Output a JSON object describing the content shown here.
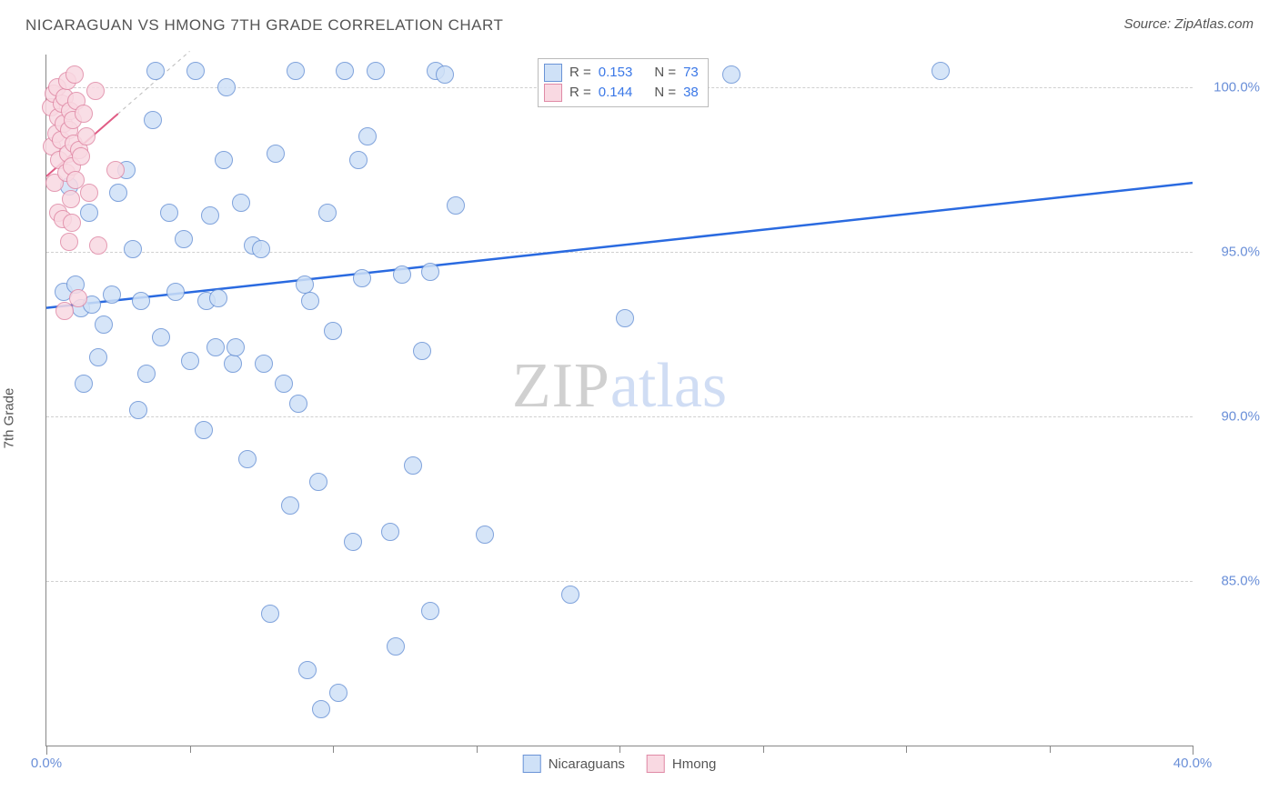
{
  "title": "NICARAGUAN VS HMONG 7TH GRADE CORRELATION CHART",
  "source": "Source: ZipAtlas.com",
  "y_axis_label": "7th Grade",
  "watermark": {
    "bold": "ZIP",
    "light": "atlas"
  },
  "chart": {
    "type": "scatter",
    "background_color": "#ffffff",
    "grid_color": "#d0d0d0",
    "axis_color": "#888888",
    "xlim": [
      0,
      40
    ],
    "ylim": [
      80,
      101
    ],
    "x_ticks_major": [
      0,
      40
    ],
    "x_ticks_minor": [
      5,
      10,
      15,
      20,
      25,
      30,
      35
    ],
    "x_tick_labels": [
      "0.0%",
      "40.0%"
    ],
    "y_ticks": [
      85,
      90,
      95,
      100
    ],
    "y_tick_labels": [
      "85.0%",
      "90.0%",
      "95.0%",
      "100.0%"
    ],
    "tick_label_color": "#6a8fd8",
    "tick_fontsize": 15,
    "marker_radius": 9,
    "marker_border_width": 1.5,
    "series": [
      {
        "name": "Nicaraguans",
        "fill_color": "#cfe1f7",
        "border_color": "#6a93d6",
        "trend_color": "#2a6ae0",
        "trend_width": 2.5,
        "trend_start": [
          0,
          93.3
        ],
        "trend_end": [
          40,
          97.1
        ],
        "points": [
          [
            0.6,
            93.8
          ],
          [
            0.8,
            97.0
          ],
          [
            1.0,
            94.0
          ],
          [
            1.2,
            93.3
          ],
          [
            1.3,
            91.0
          ],
          [
            1.5,
            96.2
          ],
          [
            1.6,
            93.4
          ],
          [
            1.8,
            91.8
          ],
          [
            2.0,
            92.8
          ],
          [
            2.3,
            93.7
          ],
          [
            2.5,
            96.8
          ],
          [
            2.8,
            97.5
          ],
          [
            3.0,
            95.1
          ],
          [
            3.2,
            90.2
          ],
          [
            3.3,
            93.5
          ],
          [
            3.5,
            91.3
          ],
          [
            3.7,
            99.0
          ],
          [
            3.8,
            100.5
          ],
          [
            4.0,
            92.4
          ],
          [
            4.3,
            96.2
          ],
          [
            4.5,
            93.8
          ],
          [
            4.8,
            95.4
          ],
          [
            5.0,
            91.7
          ],
          [
            5.2,
            100.5
          ],
          [
            5.5,
            89.6
          ],
          [
            5.6,
            93.5
          ],
          [
            5.7,
            96.1
          ],
          [
            5.9,
            92.1
          ],
          [
            6.0,
            93.6
          ],
          [
            6.2,
            97.8
          ],
          [
            6.3,
            100.0
          ],
          [
            6.5,
            91.6
          ],
          [
            6.6,
            92.1
          ],
          [
            6.8,
            96.5
          ],
          [
            7.0,
            88.7
          ],
          [
            7.2,
            95.2
          ],
          [
            7.5,
            95.1
          ],
          [
            7.6,
            91.6
          ],
          [
            7.8,
            84.0
          ],
          [
            8.0,
            98.0
          ],
          [
            8.3,
            91.0
          ],
          [
            8.5,
            87.3
          ],
          [
            8.7,
            100.5
          ],
          [
            8.8,
            90.4
          ],
          [
            9.0,
            94.0
          ],
          [
            9.2,
            93.5
          ],
          [
            9.5,
            88.0
          ],
          [
            9.6,
            81.1
          ],
          [
            9.8,
            96.2
          ],
          [
            9.1,
            82.3
          ],
          [
            10.0,
            92.6
          ],
          [
            10.2,
            81.6
          ],
          [
            10.4,
            100.5
          ],
          [
            10.7,
            86.2
          ],
          [
            10.9,
            97.8
          ],
          [
            11.0,
            94.2
          ],
          [
            11.2,
            98.5
          ],
          [
            11.5,
            100.5
          ],
          [
            12.0,
            86.5
          ],
          [
            12.2,
            83.0
          ],
          [
            12.4,
            94.3
          ],
          [
            12.8,
            88.5
          ],
          [
            13.1,
            92.0
          ],
          [
            13.4,
            84.1
          ],
          [
            13.4,
            94.4
          ],
          [
            13.6,
            100.5
          ],
          [
            13.9,
            100.4
          ],
          [
            14.3,
            96.4
          ],
          [
            15.3,
            86.4
          ],
          [
            18.3,
            84.6
          ],
          [
            20.2,
            93.0
          ],
          [
            23.9,
            100.4
          ],
          [
            31.2,
            100.5
          ]
        ]
      },
      {
        "name": "Hmong",
        "fill_color": "#f9d9e2",
        "border_color": "#e08aa6",
        "trend_color": "#e05c85",
        "trend_width": 2,
        "trend_start": [
          0,
          97.3
        ],
        "trend_end": [
          2.5,
          99.2
        ],
        "trend_dashed_ext": [
          [
            0,
            97.3
          ],
          [
            5,
            101.1
          ]
        ],
        "points": [
          [
            0.15,
            99.4
          ],
          [
            0.2,
            98.2
          ],
          [
            0.25,
            99.8
          ],
          [
            0.3,
            97.1
          ],
          [
            0.35,
            98.6
          ],
          [
            0.38,
            100.0
          ],
          [
            0.4,
            96.2
          ],
          [
            0.42,
            99.1
          ],
          [
            0.45,
            97.8
          ],
          [
            0.5,
            98.4
          ],
          [
            0.55,
            99.5
          ],
          [
            0.58,
            96.0
          ],
          [
            0.6,
            98.9
          ],
          [
            0.62,
            93.2
          ],
          [
            0.65,
            99.7
          ],
          [
            0.7,
            97.4
          ],
          [
            0.72,
            100.2
          ],
          [
            0.75,
            98.0
          ],
          [
            0.78,
            95.3
          ],
          [
            0.8,
            98.7
          ],
          [
            0.82,
            99.3
          ],
          [
            0.85,
            96.6
          ],
          [
            0.88,
            95.9
          ],
          [
            0.9,
            97.6
          ],
          [
            0.92,
            99.0
          ],
          [
            0.95,
            98.3
          ],
          [
            0.98,
            100.4
          ],
          [
            1.0,
            97.2
          ],
          [
            1.05,
            99.6
          ],
          [
            1.1,
            93.6
          ],
          [
            1.15,
            98.1
          ],
          [
            1.2,
            97.9
          ],
          [
            1.3,
            99.2
          ],
          [
            1.4,
            98.5
          ],
          [
            1.5,
            96.8
          ],
          [
            1.7,
            99.9
          ],
          [
            1.8,
            95.2
          ],
          [
            2.4,
            97.5
          ]
        ]
      }
    ],
    "legend_top": {
      "rows": [
        {
          "swatch_fill": "#cfe1f7",
          "swatch_border": "#6a93d6",
          "r_label": "R =",
          "r_value": "0.153",
          "n_label": "N =",
          "n_value": "73"
        },
        {
          "swatch_fill": "#f9d9e2",
          "swatch_border": "#e08aa6",
          "r_label": "R =",
          "r_value": "0.144",
          "n_label": "N =",
          "n_value": "38"
        }
      ]
    },
    "legend_bottom": {
      "items": [
        {
          "swatch_fill": "#cfe1f7",
          "swatch_border": "#6a93d6",
          "label": "Nicaraguans"
        },
        {
          "swatch_fill": "#f9d9e2",
          "swatch_border": "#e08aa6",
          "label": "Hmong"
        }
      ]
    }
  }
}
